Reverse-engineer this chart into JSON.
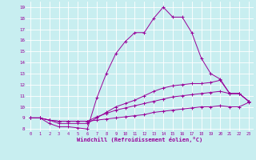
{
  "xlabel": "Windchill (Refroidissement éolien,°C)",
  "bg_color": "#c8eef0",
  "line_color": "#990099",
  "grid_color": "#ffffff",
  "xlim": [
    -0.5,
    23.5
  ],
  "ylim": [
    7.8,
    19.5
  ],
  "xticks": [
    0,
    1,
    2,
    3,
    4,
    5,
    6,
    7,
    8,
    9,
    10,
    11,
    12,
    13,
    14,
    15,
    16,
    17,
    18,
    19,
    20,
    21,
    22,
    23
  ],
  "yticks": [
    8,
    9,
    10,
    11,
    12,
    13,
    14,
    15,
    16,
    17,
    18,
    19
  ],
  "series": [
    [
      9.0,
      9.0,
      8.5,
      8.2,
      8.2,
      8.1,
      8.0,
      10.8,
      13.0,
      14.8,
      15.9,
      16.7,
      16.7,
      18.0,
      19.0,
      18.1,
      18.1,
      16.7,
      14.4,
      13.0,
      12.5,
      11.2,
      11.2,
      10.5
    ],
    [
      9.0,
      9.0,
      8.8,
      8.5,
      8.5,
      8.5,
      8.5,
      9.0,
      9.5,
      10.0,
      10.3,
      10.6,
      11.0,
      11.4,
      11.7,
      11.9,
      12.0,
      12.1,
      12.1,
      12.2,
      12.4,
      11.2,
      11.2,
      10.5
    ],
    [
      9.0,
      9.0,
      8.8,
      8.7,
      8.7,
      8.7,
      8.7,
      9.1,
      9.4,
      9.7,
      9.9,
      10.1,
      10.3,
      10.5,
      10.7,
      10.9,
      11.0,
      11.1,
      11.2,
      11.3,
      11.4,
      11.2,
      11.2,
      10.5
    ],
    [
      9.0,
      9.0,
      8.8,
      8.7,
      8.7,
      8.7,
      8.7,
      8.8,
      8.9,
      9.0,
      9.1,
      9.2,
      9.3,
      9.5,
      9.6,
      9.7,
      9.8,
      9.9,
      10.0,
      10.0,
      10.1,
      10.0,
      10.0,
      10.4
    ]
  ]
}
